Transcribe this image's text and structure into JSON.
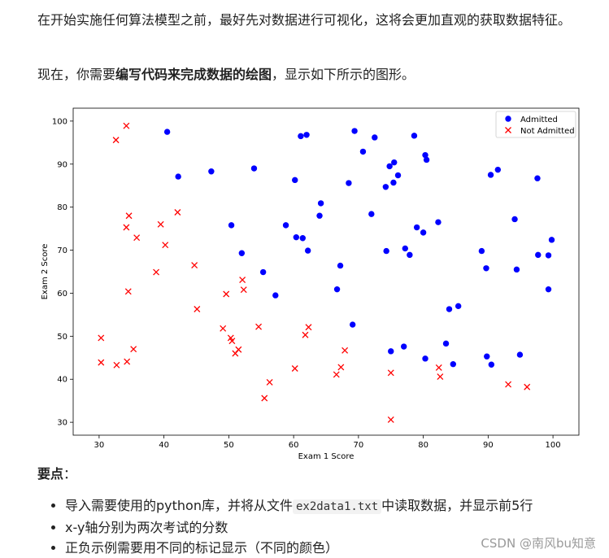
{
  "intro": {
    "paragraph1": "在开始实施任何算法模型之前，最好先对数据进行可视化，这将会更加直观的获取数据特征。",
    "paragraph2_before": "现在，你需要",
    "paragraph2_bold": "编写代码来完成数据的绘图",
    "paragraph2_after": "，显示如下所示的图形。"
  },
  "key_points": {
    "heading": "要点",
    "colon": "：",
    "items": [
      {
        "before": "导入需要使用的python库，并将从文件",
        "code": "ex2data1.txt",
        "after": "中读取数据，并显示前5行"
      },
      {
        "before": "x-y轴分别为两次考试的分数",
        "code": "",
        "after": ""
      },
      {
        "before": "正负示例需要用不同的标记显示（不同的颜色）",
        "code": "",
        "after": ""
      }
    ]
  },
  "watermark": "CSDN @南风bu知意",
  "chart_data": {
    "type": "scatter",
    "title": "",
    "xlabel": "Exam 1 Score",
    "ylabel": "Exam 2 Score",
    "xlim": [
      26,
      104
    ],
    "ylim": [
      27,
      103
    ],
    "xticks": [
      30,
      40,
      50,
      60,
      70,
      80,
      90,
      100
    ],
    "yticks": [
      30,
      40,
      50,
      60,
      70,
      80,
      90,
      100
    ],
    "grid": false,
    "legend_position": "top-right",
    "series": [
      {
        "name": "Admitted",
        "marker": "o",
        "color": "#0000ff",
        "points": [
          [
            40.5,
            97.5
          ],
          [
            42.2,
            87.1
          ],
          [
            47.3,
            88.3
          ],
          [
            50.4,
            75.8
          ],
          [
            52.0,
            69.3
          ],
          [
            53.9,
            89.0
          ],
          [
            55.3,
            64.9
          ],
          [
            57.2,
            59.5
          ],
          [
            58.8,
            75.8
          ],
          [
            60.2,
            86.3
          ],
          [
            60.4,
            73.0
          ],
          [
            61.1,
            96.5
          ],
          [
            61.4,
            72.8
          ],
          [
            62.0,
            96.8
          ],
          [
            62.2,
            69.9
          ],
          [
            64.0,
            78.0
          ],
          [
            64.2,
            80.9
          ],
          [
            66.7,
            60.9
          ],
          [
            67.2,
            66.4
          ],
          [
            68.5,
            85.6
          ],
          [
            69.1,
            52.7
          ],
          [
            69.4,
            97.7
          ],
          [
            70.7,
            92.9
          ],
          [
            72.0,
            78.4
          ],
          [
            72.5,
            96.2
          ],
          [
            74.2,
            84.7
          ],
          [
            74.3,
            69.8
          ],
          [
            74.8,
            89.5
          ],
          [
            75.0,
            46.5
          ],
          [
            75.4,
            85.7
          ],
          [
            75.5,
            90.4
          ],
          [
            76.1,
            87.4
          ],
          [
            77.0,
            47.6
          ],
          [
            77.2,
            70.4
          ],
          [
            77.9,
            68.9
          ],
          [
            78.6,
            96.6
          ],
          [
            79.0,
            75.3
          ],
          [
            80.0,
            74.1
          ],
          [
            80.3,
            44.8
          ],
          [
            80.3,
            92.1
          ],
          [
            80.5,
            91.0
          ],
          [
            82.3,
            76.5
          ],
          [
            83.5,
            48.3
          ],
          [
            84.0,
            56.3
          ],
          [
            84.6,
            43.5
          ],
          [
            85.4,
            57.0
          ],
          [
            89.0,
            69.8
          ],
          [
            89.7,
            65.8
          ],
          [
            89.8,
            45.3
          ],
          [
            90.4,
            87.5
          ],
          [
            90.5,
            43.4
          ],
          [
            91.5,
            88.7
          ],
          [
            94.1,
            77.2
          ],
          [
            94.4,
            65.5
          ],
          [
            94.9,
            45.7
          ],
          [
            97.6,
            86.7
          ],
          [
            97.7,
            68.9
          ],
          [
            99.3,
            68.8
          ],
          [
            99.3,
            60.9
          ],
          [
            99.8,
            72.4
          ]
        ]
      },
      {
        "name": "Not Admitted",
        "marker": "x",
        "color": "#ff0000",
        "points": [
          [
            30.3,
            49.6
          ],
          [
            30.3,
            43.9
          ],
          [
            32.6,
            95.6
          ],
          [
            32.7,
            43.3
          ],
          [
            34.2,
            98.9
          ],
          [
            34.2,
            75.3
          ],
          [
            34.3,
            44.1
          ],
          [
            34.5,
            60.4
          ],
          [
            34.6,
            78.0
          ],
          [
            35.3,
            47.0
          ],
          [
            35.8,
            72.9
          ],
          [
            38.8,
            64.9
          ],
          [
            39.5,
            76.0
          ],
          [
            40.2,
            71.2
          ],
          [
            42.1,
            78.8
          ],
          [
            44.7,
            66.5
          ],
          [
            45.1,
            56.3
          ],
          [
            49.1,
            51.8
          ],
          [
            49.6,
            59.8
          ],
          [
            50.3,
            49.6
          ],
          [
            50.5,
            48.9
          ],
          [
            51.0,
            46.0
          ],
          [
            51.5,
            46.9
          ],
          [
            52.1,
            63.1
          ],
          [
            52.3,
            60.8
          ],
          [
            54.6,
            52.2
          ],
          [
            55.5,
            35.6
          ],
          [
            56.3,
            39.3
          ],
          [
            60.2,
            42.5
          ],
          [
            61.8,
            50.3
          ],
          [
            62.3,
            52.1
          ],
          [
            66.6,
            41.1
          ],
          [
            67.3,
            42.8
          ],
          [
            67.9,
            46.7
          ],
          [
            75.0,
            41.5
          ],
          [
            75.0,
            30.6
          ],
          [
            82.4,
            42.7
          ],
          [
            82.6,
            40.6
          ],
          [
            93.1,
            38.8
          ],
          [
            96.0,
            38.2
          ]
        ]
      }
    ]
  }
}
